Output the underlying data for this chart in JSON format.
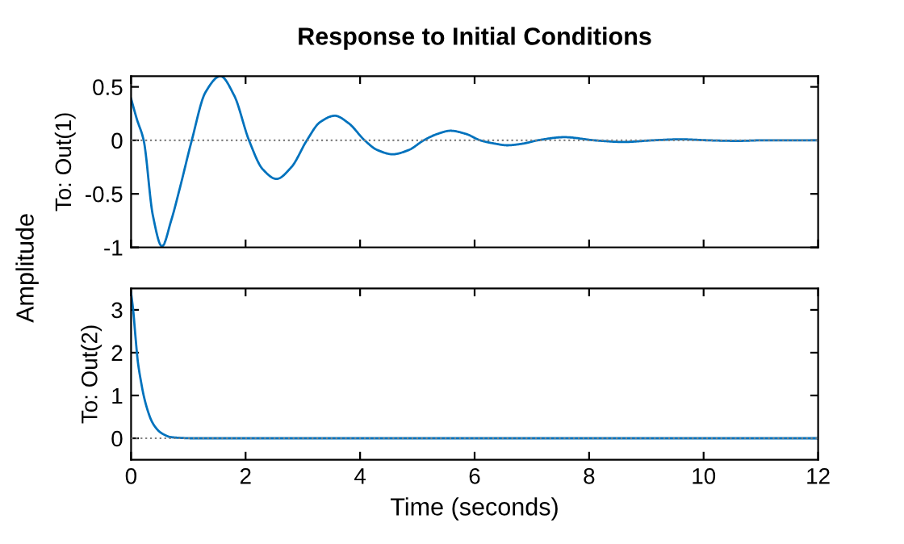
{
  "chart_data": [
    {
      "type": "line",
      "title": "Response to Initial Conditions",
      "ylabel": "To: Out(1)",
      "xlim": [
        0,
        12
      ],
      "xticks": [
        0,
        2,
        4,
        6,
        8,
        10,
        12
      ],
      "ylim": [
        -1,
        0.6
      ],
      "yticks": [
        -1,
        -0.5,
        0,
        0.5
      ],
      "tick_labels": "y",
      "grid": false,
      "legend": false,
      "ref_lines": [
        {
          "axis": "y",
          "value": 0,
          "color": "#808080",
          "line_style": "dotted"
        }
      ],
      "series": [
        {
          "color": "#0072bd",
          "x": [
            0,
            0.1,
            0.22,
            0.38,
            0.54,
            0.7,
            0.85,
            1.06,
            1.3,
            1.56,
            1.8,
            2.06,
            2.3,
            2.54,
            2.8,
            3.07,
            3.3,
            3.56,
            3.8,
            4.08,
            4.3,
            4.57,
            4.85,
            5.11,
            5.35,
            5.58,
            5.85,
            6.1,
            6.35,
            6.57,
            6.85,
            7.1,
            7.57,
            8.1,
            8.6,
            9.1,
            9.6,
            10.1,
            10.6,
            11,
            12
          ],
          "values": [
            0.39,
            0.2,
            0,
            -0.7,
            -0.99,
            -0.75,
            -0.45,
            0,
            0.45,
            0.6,
            0.42,
            0,
            -0.27,
            -0.36,
            -0.25,
            0,
            0.17,
            0.23,
            0.16,
            0,
            -0.09,
            -0.13,
            -0.09,
            0,
            0.06,
            0.09,
            0.06,
            0,
            -0.03,
            -0.046,
            -0.03,
            0,
            0.03,
            0,
            -0.015,
            0,
            0.01,
            0,
            -0.005,
            0,
            0
          ]
        }
      ]
    },
    {
      "type": "line",
      "ylabel": "To: Out(2)",
      "xlabel": "Time (seconds)",
      "annotations": [
        "Amplitude"
      ],
      "xlim": [
        0,
        12
      ],
      "xticks": [
        0,
        2,
        4,
        6,
        8,
        10,
        12
      ],
      "ylim": [
        -0.5,
        3.5
      ],
      "yticks": [
        0,
        1,
        2,
        3
      ],
      "grid": false,
      "legend": false,
      "ref_lines": [
        {
          "axis": "y",
          "value": 0,
          "color": "#808080",
          "line_style": "dotted"
        }
      ],
      "series": [
        {
          "color": "#0072bd",
          "x": [
            0,
            0.04,
            0.075,
            0.12,
            0.17,
            0.22,
            0.29,
            0.36,
            0.43,
            0.5,
            0.6,
            0.68,
            0.85,
            1.06,
            2,
            4,
            6,
            8,
            10,
            12
          ],
          "values": [
            3.4,
            2.95,
            2.4,
            1.77,
            1.35,
            1.0,
            0.65,
            0.4,
            0.25,
            0.15,
            0.07,
            0.03,
            0.01,
            0,
            0,
            0,
            0,
            0,
            0,
            0
          ]
        }
      ]
    }
  ]
}
